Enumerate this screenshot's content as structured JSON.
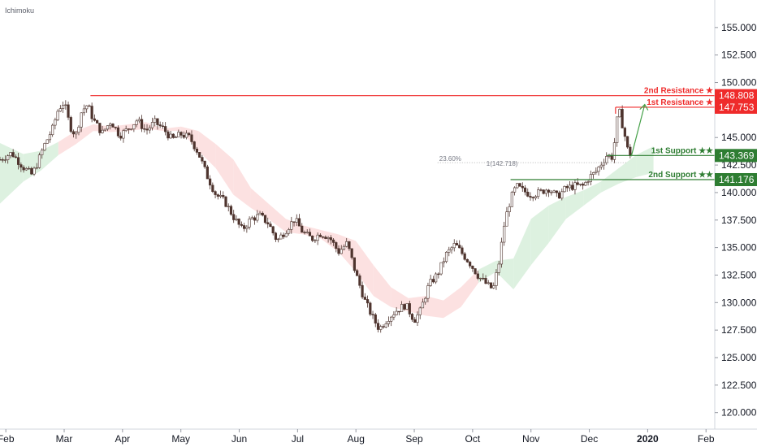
{
  "indicator_label": "Ichimoku",
  "chart_data": {
    "type": "candlestick",
    "ylim": [
      118.5,
      157.5
    ],
    "xlim_months": [
      -0.1,
      12.15
    ],
    "y_ticks": [
      155,
      152.5,
      150,
      147.5,
      145,
      142.5,
      140,
      137.5,
      135,
      132.5,
      130,
      127.5,
      125,
      122.5,
      120
    ],
    "y_tick_labels": [
      "155.000",
      "152.500",
      "150.000",
      "147.500",
      "145.000",
      "142.500",
      "140.000",
      "137.500",
      "135.000",
      "132.500",
      "130.000",
      "127.500",
      "125.000",
      "122.500",
      "120.000"
    ],
    "x_ticks": [
      {
        "label": "Feb",
        "month": 0
      },
      {
        "label": "Mar",
        "month": 1
      },
      {
        "label": "Apr",
        "month": 2
      },
      {
        "label": "May",
        "month": 3
      },
      {
        "label": "Jun",
        "month": 4
      },
      {
        "label": "Jul",
        "month": 5
      },
      {
        "label": "Aug",
        "month": 6
      },
      {
        "label": "Sep",
        "month": 7
      },
      {
        "label": "Oct",
        "month": 8
      },
      {
        "label": "Nov",
        "month": 9
      },
      {
        "label": "Dec",
        "month": 10
      },
      {
        "label": "2020",
        "month": 11
      },
      {
        "label": "Feb",
        "month": 12
      }
    ],
    "price_path": [
      [
        -0.1,
        143.0
      ],
      [
        0.1,
        143.6
      ],
      [
        0.3,
        142.3
      ],
      [
        0.45,
        141.6
      ],
      [
        0.55,
        142.8
      ],
      [
        0.65,
        144.2
      ],
      [
        0.8,
        145.8
      ],
      [
        0.9,
        147.6
      ],
      [
        1.0,
        148.2
      ],
      [
        1.1,
        146.0
      ],
      [
        1.2,
        145.2
      ],
      [
        1.3,
        147.4
      ],
      [
        1.4,
        148.0
      ],
      [
        1.5,
        146.6
      ],
      [
        1.65,
        145.4
      ],
      [
        1.8,
        146.5
      ],
      [
        1.95,
        145.2
      ],
      [
        2.1,
        145.8
      ],
      [
        2.25,
        146.6
      ],
      [
        2.4,
        145.6
      ],
      [
        2.55,
        146.4
      ],
      [
        2.7,
        145.8
      ],
      [
        2.85,
        144.8
      ],
      [
        3.0,
        145.3
      ],
      [
        3.15,
        145.0
      ],
      [
        3.3,
        143.6
      ],
      [
        3.45,
        141.5
      ],
      [
        3.6,
        139.8
      ],
      [
        3.75,
        139.2
      ],
      [
        3.9,
        137.8
      ],
      [
        4.05,
        136.6
      ],
      [
        4.2,
        137.6
      ],
      [
        4.35,
        137.9
      ],
      [
        4.5,
        137.2
      ],
      [
        4.65,
        135.6
      ],
      [
        4.8,
        136.6
      ],
      [
        4.95,
        137.6
      ],
      [
        5.1,
        136.3
      ],
      [
        5.25,
        135.8
      ],
      [
        5.4,
        136.3
      ],
      [
        5.55,
        135.9
      ],
      [
        5.7,
        134.6
      ],
      [
        5.85,
        135.4
      ],
      [
        6.0,
        132.6
      ],
      [
        6.15,
        130.2
      ],
      [
        6.3,
        128.5
      ],
      [
        6.4,
        127.6
      ],
      [
        6.55,
        128.6
      ],
      [
        6.7,
        129.3
      ],
      [
        6.85,
        129.8
      ],
      [
        7.0,
        128.4
      ],
      [
        7.1,
        129.2
      ],
      [
        7.25,
        131.6
      ],
      [
        7.4,
        132.6
      ],
      [
        7.55,
        134.4
      ],
      [
        7.7,
        135.3
      ],
      [
        7.8,
        134.6
      ],
      [
        7.95,
        133.6
      ],
      [
        8.1,
        132.4
      ],
      [
        8.25,
        131.6
      ],
      [
        8.35,
        131.2
      ],
      [
        8.45,
        133.6
      ],
      [
        8.55,
        137.4
      ],
      [
        8.65,
        139.4
      ],
      [
        8.75,
        140.6
      ],
      [
        8.85,
        140.2
      ],
      [
        9.0,
        139.8
      ],
      [
        9.15,
        140.0
      ],
      [
        9.3,
        140.4
      ],
      [
        9.45,
        139.6
      ],
      [
        9.6,
        140.4
      ],
      [
        9.75,
        140.6
      ],
      [
        9.9,
        140.6
      ],
      [
        10.0,
        141.4
      ],
      [
        10.1,
        141.8
      ],
      [
        10.2,
        142.6
      ],
      [
        10.3,
        143.4
      ],
      [
        10.4,
        143.2
      ],
      [
        10.5,
        147.7
      ],
      [
        10.6,
        145.4
      ],
      [
        10.65,
        144.0
      ],
      [
        10.72,
        143.3
      ]
    ],
    "cloud": [
      [
        -0.1,
        144.5,
        139.0
      ],
      [
        0.3,
        143.5,
        141.0
      ],
      [
        0.6,
        143.8,
        142.0
      ],
      [
        0.9,
        144.6,
        143.4
      ],
      [
        1.2,
        145.6,
        144.4
      ],
      [
        1.5,
        146.2,
        145.6
      ],
      [
        1.8,
        146.0,
        145.5
      ],
      [
        2.1,
        146.2,
        145.6
      ],
      [
        2.4,
        146.4,
        145.8
      ],
      [
        2.7,
        145.8,
        145.6
      ],
      [
        3.0,
        146.0,
        145.6
      ],
      [
        3.3,
        145.6,
        143.8
      ],
      [
        3.6,
        144.4,
        142.2
      ],
      [
        3.9,
        143.0,
        139.8
      ],
      [
        4.2,
        140.4,
        138.6
      ],
      [
        4.5,
        139.0,
        137.6
      ],
      [
        4.8,
        137.6,
        136.4
      ],
      [
        5.1,
        137.0,
        136.2
      ],
      [
        5.4,
        136.6,
        135.8
      ],
      [
        5.7,
        136.2,
        134.6
      ],
      [
        6.0,
        135.6,
        132.8
      ],
      [
        6.3,
        133.4,
        130.6
      ],
      [
        6.6,
        131.4,
        129.6
      ],
      [
        6.9,
        130.4,
        129.2
      ],
      [
        7.2,
        130.6,
        128.8
      ],
      [
        7.5,
        130.2,
        128.6
      ],
      [
        7.8,
        131.4,
        129.6
      ],
      [
        8.1,
        133.0,
        131.8
      ],
      [
        8.4,
        133.8,
        132.8
      ],
      [
        8.7,
        134.0,
        131.2
      ],
      [
        9.0,
        137.6,
        133.4
      ],
      [
        9.3,
        138.8,
        135.4
      ],
      [
        9.6,
        139.6,
        137.6
      ],
      [
        9.9,
        140.2,
        138.8
      ],
      [
        10.2,
        141.0,
        140.0
      ],
      [
        10.5,
        142.2,
        140.8
      ],
      [
        10.8,
        143.4,
        141.4
      ],
      [
        11.1,
        144.2,
        141.8
      ]
    ],
    "resistance_2": {
      "label": "2nd Resistance ★",
      "value": 148.808,
      "value_label": "148.808",
      "start_month": 1.45
    },
    "resistance_1": {
      "label": "1st Resistance ★",
      "value": 147.753,
      "value_label": "147.753",
      "start_month": 10.45
    },
    "support_1": {
      "label": "1st Support ★★",
      "value": 143.369,
      "value_label": "143.369",
      "start_month": 10.3
    },
    "support_2": {
      "label": "2nd Support ★★",
      "value": 141.176,
      "value_label": "141.176",
      "start_month": 8.65
    },
    "fib": {
      "label": "23.60%",
      "price_label": "1(142.718)",
      "value": 142.718,
      "start_month": 7.4,
      "end_month": 10.65
    },
    "projection_arrow": [
      [
        10.72,
        143.3
      ],
      [
        10.95,
        148.0
      ]
    ],
    "colors": {
      "up": "#26a69a",
      "down": "#ef5350",
      "candle": "#4e342e",
      "resistance": "#ef2b2b",
      "support": "#2e7d32",
      "cloud_bull": "#d7eeda",
      "cloud_bear": "#fbdcdc",
      "kijun": "#7b1fa2",
      "green_line": "#43a047"
    }
  }
}
